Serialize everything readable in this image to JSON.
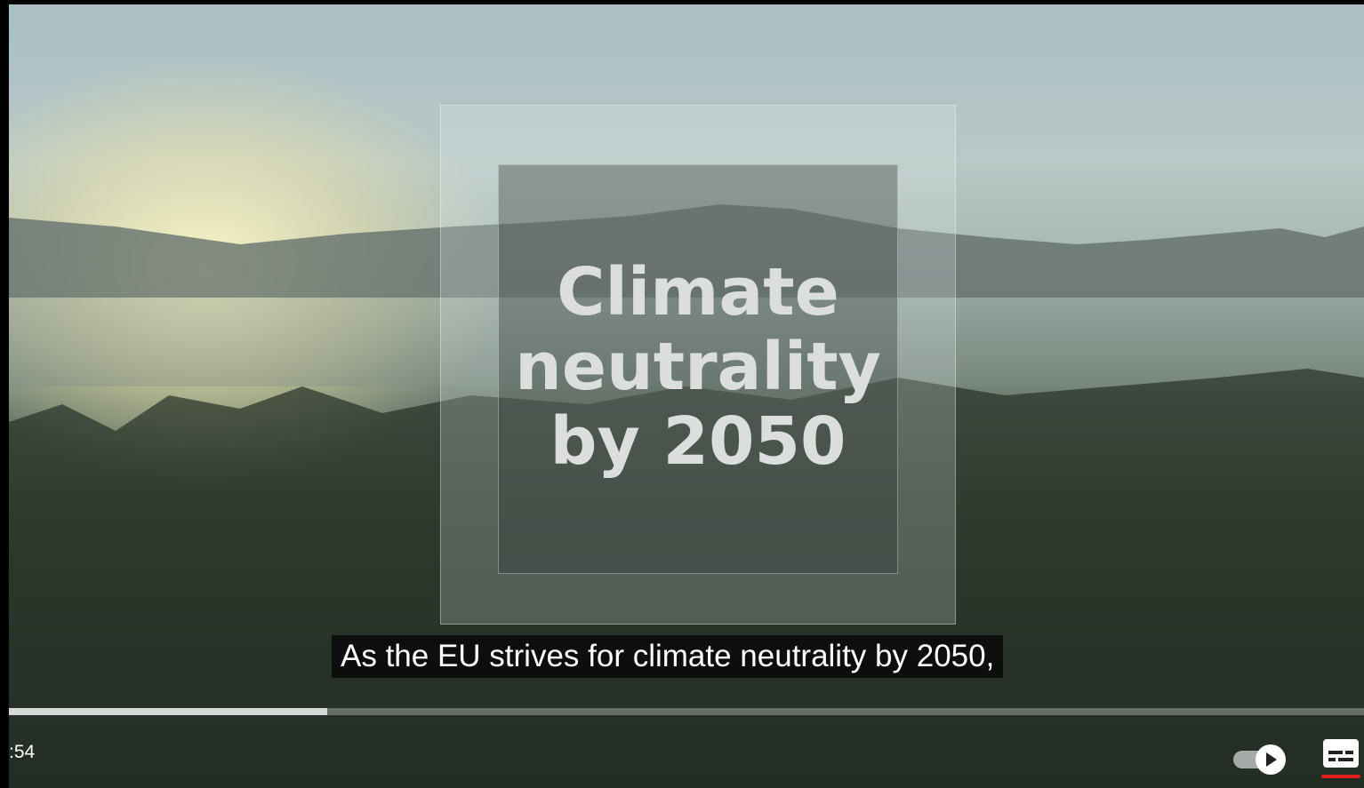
{
  "video": {
    "title_lines": [
      "Climate",
      "neutrality",
      "by 2050"
    ],
    "caption": "As the EU strives for climate neutrality by 2050,",
    "time": ":54"
  }
}
